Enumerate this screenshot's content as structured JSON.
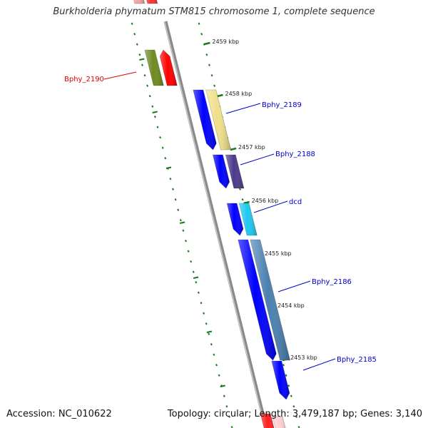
{
  "title": "Burkholderia phymatum STM815 chromosome 1, complete sequence",
  "footer": {
    "accession": "Accession: NC_010622",
    "topology": "Topology: circular; Length: 3,479,187 bp; Genes: 3,140"
  },
  "colors": {
    "background": "#ffffff",
    "backbone": "#8a8a8a",
    "tick_mark": "#1a7a1a",
    "label_red": "#e00000",
    "label_blue": "#0000cc",
    "forward_gene": "#0000ff"
  },
  "ruler": [
    {
      "label": "2459 kbp"
    },
    {
      "label": "2458 kbp"
    },
    {
      "label": "2457 kbp"
    },
    {
      "label": "2456 kbp"
    },
    {
      "label": "2455 kbp"
    },
    {
      "label": "2454 kbp"
    },
    {
      "label": "2453 kbp"
    }
  ],
  "genes": [
    {
      "label": "Bphy_2190",
      "label_color": "#e00000",
      "strand": "minus",
      "track_colors": [
        "#6f8a20",
        "#ff0000"
      ]
    },
    {
      "label": "Bphy_2189",
      "label_color": "#0000cc",
      "strand": "plus",
      "track_colors": [
        "#0000ff",
        "#f0e08a"
      ]
    },
    {
      "label": "Bphy_2188",
      "label_color": "#0000cc",
      "strand": "plus",
      "track_colors": [
        "#0000ff",
        "#4b3a8c"
      ]
    },
    {
      "label": "dcd",
      "label_color": "#0000cc",
      "strand": "plus",
      "track_colors": [
        "#0000ff",
        "#1ec8f0"
      ]
    },
    {
      "label": "Bphy_2186",
      "label_color": "#0000cc",
      "strand": "plus",
      "track_colors": [
        "#0000ff",
        "#4a80b0"
      ]
    },
    {
      "label": "Bphy_2185",
      "label_color": "#0000cc",
      "strand": "plus",
      "track_colors": [
        "#0000ff"
      ]
    }
  ]
}
